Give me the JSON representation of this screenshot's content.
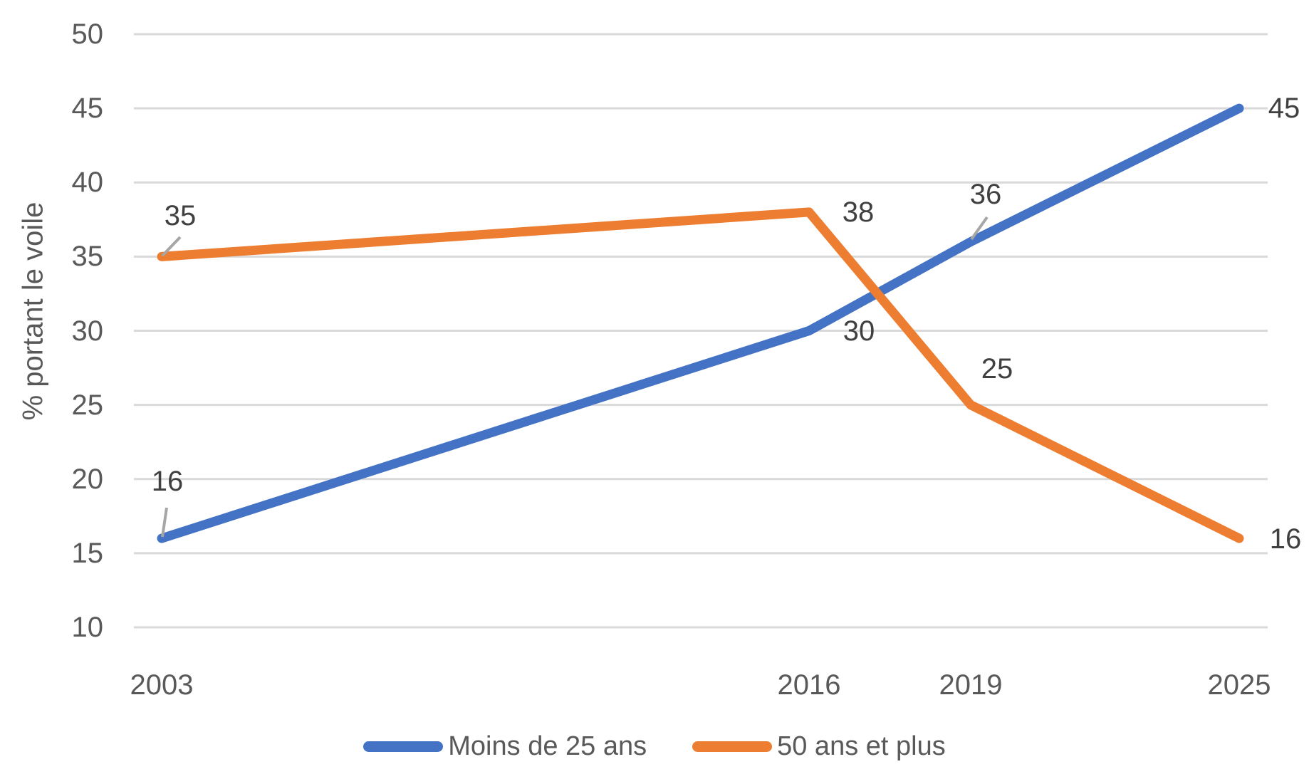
{
  "chart_data": {
    "type": "line",
    "x": [
      2003,
      2016,
      2019,
      2025
    ],
    "x_tick_labels": [
      "2003",
      "2016",
      "2019",
      "2025"
    ],
    "series": [
      {
        "name": "Moins de 25 ans",
        "values": [
          16,
          30,
          36,
          45
        ],
        "data_labels": [
          "16",
          "30",
          "36",
          "45"
        ],
        "color": "#4472C4"
      },
      {
        "name": "50 ans et plus",
        "values": [
          35,
          38,
          25,
          16
        ],
        "data_labels": [
          "35",
          "38",
          "25",
          "16"
        ],
        "color": "#ED7D31"
      }
    ],
    "title": "",
    "xlabel": "",
    "ylabel": "% portant le voile",
    "ylim": [
      10,
      50
    ],
    "y_ticks": [
      10,
      15,
      20,
      25,
      30,
      35,
      40,
      45,
      50
    ],
    "y_tick_labels": [
      "10",
      "15",
      "20",
      "25",
      "30",
      "35",
      "40",
      "45",
      "50"
    ],
    "grid": "horizontal",
    "legend_position": "bottom"
  },
  "colors": {
    "background": "#FFFFFF",
    "series_blue": "#4472C4",
    "series_orange": "#ED7D31",
    "gridline": "#D9D9D9",
    "axis_text": "#595959",
    "data_label_text": "#404040",
    "leader_line": "#A6A6A6"
  }
}
